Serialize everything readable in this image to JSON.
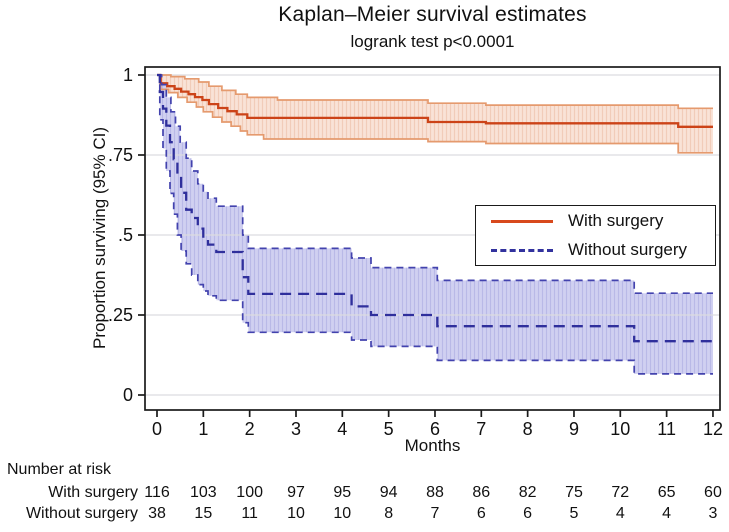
{
  "title": "Kaplan–Meier survival estimates",
  "subtitle": "logrank test p<0.0001",
  "ylabel": "Proportion surviving (95% CI)",
  "xlabel": "Months",
  "legend": {
    "items": [
      {
        "label": "With surgery",
        "style": "solid",
        "color": "#d8491d"
      },
      {
        "label": "Without surgery",
        "style": "dashed",
        "color": "#32329e"
      }
    ]
  },
  "risk_table": {
    "header": "Number at risk",
    "rows": [
      {
        "label": "With surgery",
        "values": [
          116,
          103,
          100,
          97,
          95,
          94,
          88,
          86,
          82,
          75,
          72,
          65,
          60
        ]
      },
      {
        "label": "Without surgery",
        "values": [
          38,
          15,
          11,
          10,
          10,
          8,
          7,
          6,
          6,
          5,
          4,
          4,
          3
        ]
      }
    ]
  },
  "chart_data": {
    "type": "line",
    "subtype": "kaplan-meier-step",
    "title": "Kaplan–Meier survival estimates",
    "annotation": "logrank test p<0.0001",
    "xlabel": "Months",
    "ylabel": "Proportion surviving (95% CI)",
    "xlim": [
      0,
      12
    ],
    "ylim": [
      0,
      1
    ],
    "grid": true,
    "legend_position": "inside-right",
    "x_ticks": [
      0,
      1,
      2,
      3,
      4,
      5,
      6,
      7,
      8,
      9,
      10,
      11,
      12
    ],
    "y_ticks": [
      {
        "v": 0,
        "label": "0"
      },
      {
        "v": 0.25,
        "label": ".25"
      },
      {
        "v": 0.5,
        "label": ".5"
      },
      {
        "v": 0.75,
        "label": ".75"
      },
      {
        "v": 1,
        "label": "1"
      }
    ],
    "grid_color": "#dcdce0",
    "axis_color": "#1a1a1a",
    "series": [
      {
        "name": "With surgery",
        "line_color": "#cc4318",
        "line_style": "solid",
        "ci_border_color": "#e59a6e",
        "ci_border_style": "solid",
        "ci_fill": "#f9e3d7",
        "ci_stripe": "#f1ccb9",
        "steps": [
          [
            0,
            1
          ],
          [
            0.08,
            0.974
          ],
          [
            0.22,
            0.965
          ],
          [
            0.38,
            0.957
          ],
          [
            0.52,
            0.948
          ],
          [
            0.68,
            0.94
          ],
          [
            0.82,
            0.931
          ],
          [
            0.98,
            0.922
          ],
          [
            1.12,
            0.909
          ],
          [
            1.32,
            0.897
          ],
          [
            1.52,
            0.887
          ],
          [
            1.72,
            0.877
          ],
          [
            1.95,
            0.866
          ],
          [
            5.85,
            0.853
          ],
          [
            7.1,
            0.849
          ],
          [
            11.25,
            0.838
          ],
          [
            12,
            0.838
          ]
        ],
        "ci_upper": [
          [
            0,
            1
          ],
          [
            0.3,
            0.995
          ],
          [
            0.6,
            0.988
          ],
          [
            0.9,
            0.978
          ],
          [
            1.12,
            0.965
          ],
          [
            1.4,
            0.952
          ],
          [
            1.7,
            0.94
          ],
          [
            1.95,
            0.93
          ],
          [
            2.6,
            0.922
          ],
          [
            5.85,
            0.912
          ],
          [
            7.1,
            0.906
          ],
          [
            11.25,
            0.896
          ],
          [
            12,
            0.896
          ]
        ],
        "ci_lower": [
          [
            0,
            1
          ],
          [
            0.08,
            0.955
          ],
          [
            0.25,
            0.945
          ],
          [
            0.45,
            0.93
          ],
          [
            0.65,
            0.915
          ],
          [
            0.85,
            0.9
          ],
          [
            1.0,
            0.885
          ],
          [
            1.2,
            0.868
          ],
          [
            1.4,
            0.853
          ],
          [
            1.6,
            0.84
          ],
          [
            1.8,
            0.825
          ],
          [
            1.95,
            0.813
          ],
          [
            2.3,
            0.8
          ],
          [
            5.85,
            0.792
          ],
          [
            7.1,
            0.786
          ],
          [
            11.25,
            0.757
          ],
          [
            12,
            0.757
          ]
        ]
      },
      {
        "name": "Without surgery",
        "line_color": "#2f2f9c",
        "line_style": "dashed",
        "ci_border_color": "#4343ae",
        "ci_border_style": "dashed",
        "ci_fill": "#d0d0f1",
        "ci_stripe": "#b9b9e7",
        "steps": [
          [
            0,
            1
          ],
          [
            0.06,
            0.947
          ],
          [
            0.13,
            0.895
          ],
          [
            0.2,
            0.842
          ],
          [
            0.28,
            0.79
          ],
          [
            0.36,
            0.737
          ],
          [
            0.44,
            0.684
          ],
          [
            0.52,
            0.632
          ],
          [
            0.63,
            0.579
          ],
          [
            0.75,
            0.553
          ],
          [
            0.88,
            0.52
          ],
          [
            1.0,
            0.49
          ],
          [
            1.1,
            0.47
          ],
          [
            1.28,
            0.447
          ],
          [
            1.85,
            0.368
          ],
          [
            1.97,
            0.316
          ],
          [
            4.2,
            0.277
          ],
          [
            4.62,
            0.25
          ],
          [
            6.05,
            0.215
          ],
          [
            10.3,
            0.168
          ],
          [
            12,
            0.168
          ]
        ],
        "ci_upper": [
          [
            0,
            1
          ],
          [
            0.1,
            0.97
          ],
          [
            0.2,
            0.93
          ],
          [
            0.3,
            0.885
          ],
          [
            0.4,
            0.84
          ],
          [
            0.5,
            0.79
          ],
          [
            0.63,
            0.74
          ],
          [
            0.75,
            0.7
          ],
          [
            0.88,
            0.66
          ],
          [
            1.0,
            0.635
          ],
          [
            1.1,
            0.615
          ],
          [
            1.28,
            0.59
          ],
          [
            1.85,
            0.5
          ],
          [
            1.97,
            0.458
          ],
          [
            4.2,
            0.428
          ],
          [
            4.62,
            0.398
          ],
          [
            6.05,
            0.358
          ],
          [
            10.3,
            0.318
          ],
          [
            12,
            0.318
          ]
        ],
        "ci_lower": [
          [
            0,
            1
          ],
          [
            0.06,
            0.86
          ],
          [
            0.13,
            0.77
          ],
          [
            0.2,
            0.7
          ],
          [
            0.28,
            0.63
          ],
          [
            0.36,
            0.565
          ],
          [
            0.44,
            0.5
          ],
          [
            0.52,
            0.45
          ],
          [
            0.63,
            0.41
          ],
          [
            0.75,
            0.375
          ],
          [
            0.88,
            0.345
          ],
          [
            1.0,
            0.325
          ],
          [
            1.1,
            0.31
          ],
          [
            1.28,
            0.296
          ],
          [
            1.85,
            0.226
          ],
          [
            1.97,
            0.196
          ],
          [
            4.2,
            0.172
          ],
          [
            4.62,
            0.152
          ],
          [
            6.05,
            0.108
          ],
          [
            10.3,
            0.066
          ],
          [
            12,
            0.066
          ]
        ]
      }
    ]
  }
}
